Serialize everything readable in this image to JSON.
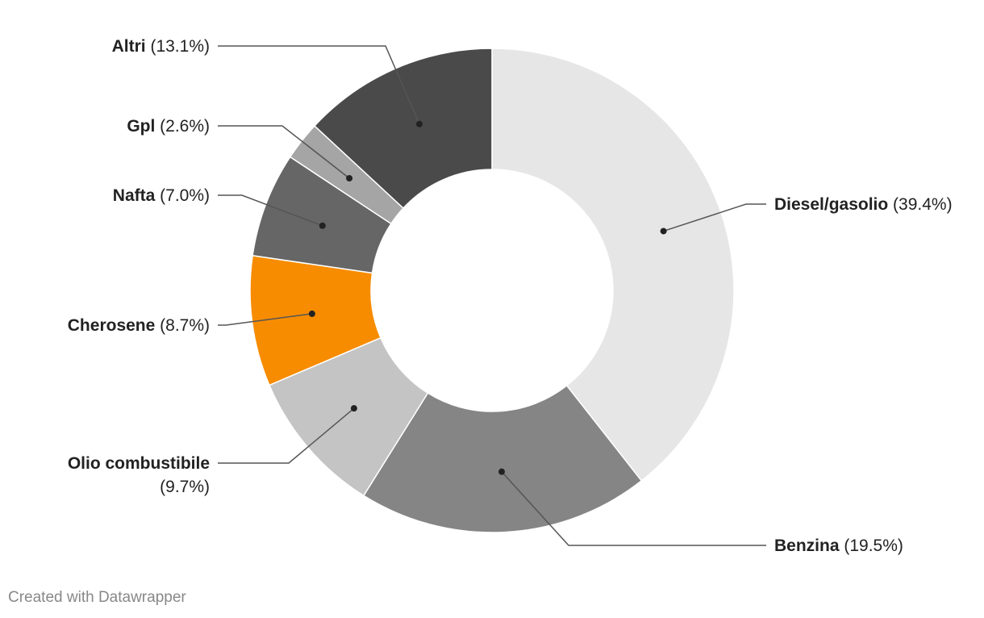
{
  "chart_data": {
    "type": "pie",
    "donut": true,
    "slices": [
      {
        "name": "Diesel/gasolio",
        "value": 39.4,
        "label": "(39.4%)",
        "color": "#e6e6e6"
      },
      {
        "name": "Benzina",
        "value": 19.5,
        "label": "(19.5%)",
        "color": "#858585"
      },
      {
        "name": "Olio combustibile",
        "value": 9.7,
        "label": "(9.7%)",
        "color": "#c4c4c4"
      },
      {
        "name": "Cherosene",
        "value": 8.7,
        "label": "(8.7%)",
        "color": "#f78c00"
      },
      {
        "name": "Nafta",
        "value": 7.0,
        "label": "(7.0%)",
        "color": "#666666"
      },
      {
        "name": "Gpl",
        "value": 2.6,
        "label": "(2.6%)",
        "color": "#a5a5a5"
      },
      {
        "name": "Altri",
        "value": 13.1,
        "label": "(13.1%)",
        "color": "#4a4a4a"
      }
    ]
  },
  "credit": "Created with Datawrapper"
}
